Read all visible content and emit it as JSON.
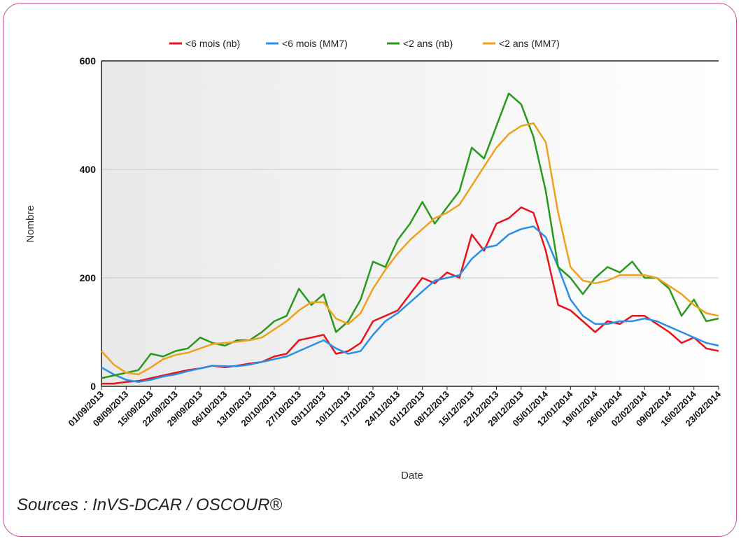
{
  "chart_data": {
    "type": "line",
    "categories": [
      "01/09/2013",
      null,
      "08/09/2013",
      null,
      "15/09/2013",
      null,
      "22/09/2013",
      null,
      "29/09/2013",
      null,
      "06/10/2013",
      null,
      "13/10/2013",
      null,
      "20/10/2013",
      null,
      "27/10/2013",
      null,
      "03/11/2013",
      null,
      "10/11/2013",
      null,
      "17/11/2013",
      null,
      "24/11/2013",
      null,
      "01/12/2013",
      null,
      "08/12/2013",
      null,
      "15/12/2013",
      null,
      "22/12/2013",
      null,
      "29/12/2013",
      null,
      "05/01/2014",
      null,
      "12/01/2014",
      null,
      "19/01/2014",
      null,
      "26/01/2014",
      null,
      "02/02/2014",
      null,
      "09/02/2014",
      null,
      "16/02/2014",
      null,
      "23/02/2014"
    ],
    "series": [
      {
        "name": "<6 mois (nb)",
        "color": "#e8141c",
        "values": [
          5,
          5,
          8,
          10,
          15,
          20,
          25,
          30,
          33,
          38,
          35,
          38,
          42,
          45,
          55,
          60,
          85,
          90,
          95,
          60,
          65,
          80,
          120,
          130,
          140,
          170,
          200,
          190,
          210,
          200,
          280,
          250,
          300,
          310,
          330,
          320,
          250,
          150,
          140,
          120,
          100,
          120,
          115,
          130,
          130,
          115,
          100,
          80,
          90,
          70,
          65
        ]
      },
      {
        "name": "<6 mois (MM7)",
        "color": "#2b8fe6",
        "values": [
          35,
          22,
          12,
          8,
          12,
          18,
          22,
          28,
          33,
          38,
          37,
          37,
          40,
          45,
          50,
          55,
          65,
          75,
          85,
          70,
          60,
          65,
          95,
          120,
          135,
          155,
          175,
          195,
          200,
          205,
          235,
          255,
          260,
          280,
          290,
          295,
          275,
          220,
          160,
          130,
          115,
          115,
          120,
          120,
          125,
          120,
          110,
          100,
          90,
          80,
          75
        ]
      },
      {
        "name": "<2 ans (nb)",
        "color": "#2a9a1e",
        "values": [
          15,
          20,
          25,
          30,
          60,
          55,
          65,
          70,
          90,
          80,
          75,
          85,
          85,
          100,
          120,
          130,
          180,
          150,
          170,
          100,
          120,
          160,
          230,
          220,
          270,
          300,
          340,
          300,
          330,
          360,
          440,
          420,
          480,
          540,
          520,
          460,
          360,
          220,
          200,
          170,
          200,
          220,
          210,
          230,
          200,
          200,
          180,
          130,
          160,
          120,
          125
        ]
      },
      {
        "name": "<2 ans (MM7)",
        "color": "#f0a11c",
        "values": [
          65,
          40,
          25,
          22,
          35,
          50,
          58,
          62,
          70,
          78,
          80,
          82,
          85,
          90,
          105,
          120,
          140,
          155,
          155,
          125,
          115,
          135,
          180,
          215,
          245,
          270,
          290,
          310,
          320,
          335,
          370,
          405,
          440,
          465,
          480,
          485,
          450,
          320,
          220,
          195,
          190,
          195,
          205,
          205,
          205,
          200,
          185,
          170,
          150,
          135,
          130
        ]
      }
    ],
    "x_label": "Date",
    "y_label": "Nombre",
    "ylim": [
      0,
      600
    ],
    "yticks": [
      0,
      200,
      400,
      600
    ],
    "grid": true,
    "legend": "top",
    "source": "Sources : InVS-DCAR / OSCOUR®"
  }
}
